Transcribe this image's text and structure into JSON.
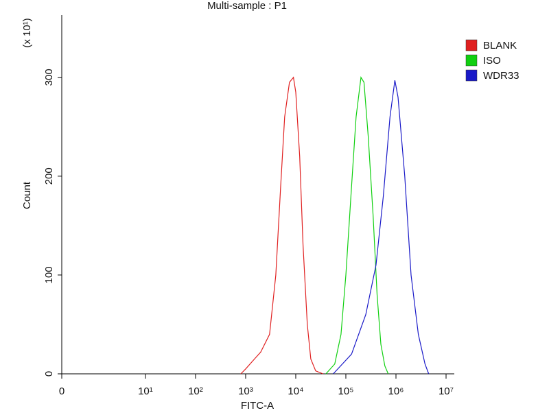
{
  "chart_data": {
    "type": "line",
    "title": "Multi-sample : P1",
    "xlabel": "FITC-A",
    "ylabel": "Count",
    "ylabel_multiplier": "(x 10¹)",
    "xscale": "log",
    "xlim": [
      0,
      10000000
    ],
    "xticks": [
      0,
      {
        "value": 10,
        "label": "10¹"
      },
      {
        "value": 100,
        "label": "10²"
      },
      {
        "value": 1000,
        "label": "10³"
      },
      {
        "value": 10000,
        "label": "10⁴"
      },
      {
        "value": 100000,
        "label": "10⁵"
      },
      {
        "value": 1000000,
        "label": "10⁶"
      },
      {
        "value": 10000000,
        "label": "10⁷"
      }
    ],
    "ylim": [
      0,
      363
    ],
    "yticks": [
      0,
      100,
      200,
      300
    ],
    "legend": "top-right",
    "series": [
      {
        "name": "BLANK",
        "color": "#e02020",
        "x": [
          800,
          1000,
          1500,
          2000,
          3000,
          4000,
          5000,
          6000,
          7500,
          9000,
          10000,
          12000,
          14000,
          17000,
          20000,
          25000,
          35000
        ],
        "values": [
          0,
          5,
          15,
          22,
          40,
          100,
          190,
          260,
          295,
          300,
          285,
          220,
          130,
          50,
          15,
          3,
          0
        ]
      },
      {
        "name": "ISO",
        "color": "#10d010",
        "x": [
          40000,
          60000,
          80000,
          100000,
          130000,
          160000,
          200000,
          230000,
          280000,
          350000,
          420000,
          500000,
          600000,
          700000
        ],
        "values": [
          0,
          10,
          40,
          100,
          190,
          260,
          300,
          295,
          240,
          160,
          80,
          30,
          8,
          0
        ]
      },
      {
        "name": "WDR33",
        "color": "#1a1ac8",
        "x": [
          56000,
          130000,
          250000,
          400000,
          560000,
          760000,
          950000,
          1100000,
          1500000,
          2000000,
          2800000,
          3800000,
          4500000
        ],
        "values": [
          0,
          20,
          60,
          110,
          180,
          260,
          297,
          280,
          200,
          100,
          40,
          10,
          0
        ]
      }
    ]
  }
}
